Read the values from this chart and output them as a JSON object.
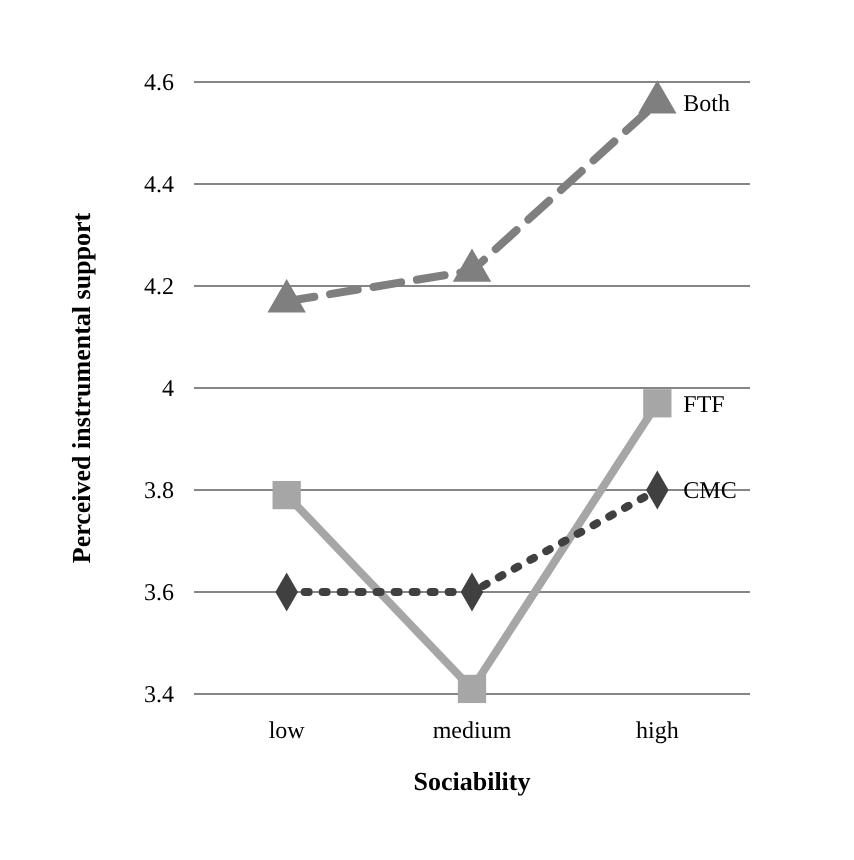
{
  "chart_data": {
    "type": "line",
    "xlabel": "Sociability",
    "ylabel": "Perceived instrumental support",
    "categories": [
      "low",
      "medium",
      "high"
    ],
    "ylim": [
      3.4,
      4.6
    ],
    "yticks": [
      3.4,
      3.6,
      3.8,
      4,
      4.2,
      4.4,
      4.6
    ],
    "grid": "y",
    "legend": false,
    "series": [
      {
        "name": "Both",
        "color": "#7f7f7f",
        "values": [
          4.17,
          4.23,
          4.56
        ],
        "marker": "triangle",
        "line_style": "dashed"
      },
      {
        "name": "FTF",
        "color": "#a6a6a6",
        "values": [
          3.79,
          3.41,
          3.97
        ],
        "marker": "square",
        "line_style": "solid"
      },
      {
        "name": "CMC",
        "color": "#404040",
        "values": [
          3.6,
          3.6,
          3.8
        ],
        "marker": "diamond",
        "line_style": "dotted"
      }
    ]
  }
}
